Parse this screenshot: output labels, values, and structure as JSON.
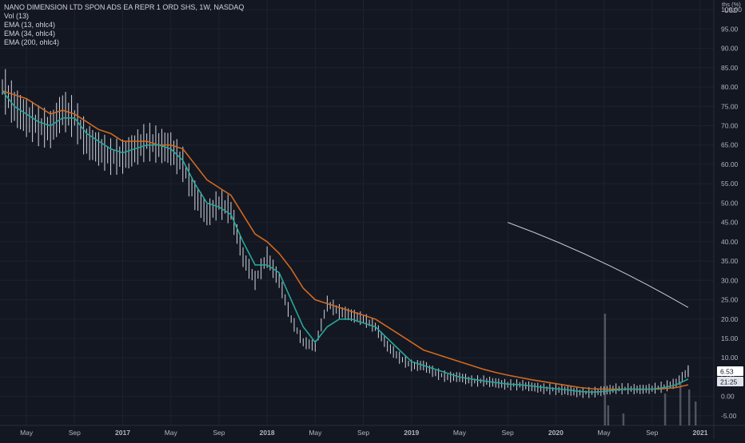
{
  "chart_data": {
    "type": "line",
    "title": "NANO DIMENSION LTD SPON ADS EA REPR 1 ORD SHS, 1W, NASDAQ",
    "indicators": [
      "Vol (13)",
      "EMA (13, ohlc4)",
      "EMA (34, ohlc4)",
      "EMA (200, ohlc4)"
    ],
    "currency": "USD",
    "y_axis_top_label": "ths (%)",
    "ylim": [
      -7.5,
      102.5
    ],
    "y_ticks": [
      "-5.00",
      "0.00",
      "5.00",
      "10.00",
      "15.00",
      "20.00",
      "25.00",
      "30.00",
      "35.00",
      "40.00",
      "45.00",
      "50.00",
      "55.00",
      "60.00",
      "65.00",
      "70.00",
      "75.00",
      "80.00",
      "85.00",
      "90.00",
      "95.00",
      "100.00"
    ],
    "x_ticks": [
      "May",
      "Sep",
      "2017",
      "May",
      "Sep",
      "2018",
      "May",
      "Sep",
      "2019",
      "May",
      "Sep",
      "2020",
      "May",
      "Sep",
      "2021"
    ],
    "last_price": "6.53",
    "countdown": "21:25",
    "colors": {
      "bars": "#d1d4dc",
      "ema13": "#26a69a",
      "ema34": "#d2691e",
      "ema200": "#c9cbd1",
      "volume": "#787b86",
      "price_tag": "#ffffff",
      "grid": "#1e2230"
    },
    "price_series": {
      "x": [
        "2016-03",
        "2016-04",
        "2016-05",
        "2016-06",
        "2016-07",
        "2016-08",
        "2016-09",
        "2016-10",
        "2016-11",
        "2016-12",
        "2017-01",
        "2017-02",
        "2017-03",
        "2017-04",
        "2017-05",
        "2017-06",
        "2017-07",
        "2017-08",
        "2017-09",
        "2017-10",
        "2017-11",
        "2017-12",
        "2018-01",
        "2018-02",
        "2018-03",
        "2018-04",
        "2018-05",
        "2018-06",
        "2018-07",
        "2018-08",
        "2018-09",
        "2018-10",
        "2018-11",
        "2018-12",
        "2019-01",
        "2019-02",
        "2019-03",
        "2019-04",
        "2019-05",
        "2019-06",
        "2019-07",
        "2019-08",
        "2019-09",
        "2019-10",
        "2019-11",
        "2019-12",
        "2020-01",
        "2020-02",
        "2020-03",
        "2020-04",
        "2020-05",
        "2020-06",
        "2020-07",
        "2020-08",
        "2020-09",
        "2020-10",
        "2020-11",
        "2020-12"
      ],
      "close": [
        80,
        75,
        72,
        70,
        69,
        74,
        72,
        66,
        64,
        62,
        62,
        64,
        66,
        65,
        64,
        60,
        52,
        47,
        50,
        48,
        36,
        30,
        36,
        30,
        20,
        14,
        13,
        24,
        22,
        21,
        20,
        18,
        13,
        10,
        8,
        8,
        6,
        5,
        5,
        4,
        4,
        3.5,
        3,
        3,
        2.5,
        2,
        1.8,
        1.5,
        1,
        1,
        1.5,
        2,
        2,
        1.8,
        2,
        2.5,
        3.5,
        6.53
      ]
    },
    "ema13": [
      79,
      75,
      73,
      71,
      70,
      72,
      72,
      68,
      66,
      64,
      63,
      64,
      65,
      65,
      64,
      61,
      55,
      50,
      49,
      47,
      40,
      34,
      34,
      32,
      25,
      18,
      14,
      18,
      20,
      20,
      19,
      18,
      15,
      12,
      9,
      8,
      7,
      6,
      5,
      4.5,
      4,
      3.6,
      3.2,
      3,
      2.7,
      2.3,
      2,
      1.7,
      1.3,
      1.1,
      1.3,
      1.7,
      1.9,
      1.8,
      1.9,
      2.3,
      3,
      4.5
    ],
    "ema34": [
      79,
      78,
      77,
      75,
      73,
      74,
      73,
      71,
      69,
      68,
      66,
      66,
      66,
      65,
      65,
      64,
      60,
      56,
      54,
      52,
      47,
      42,
      40,
      37,
      33,
      28,
      25,
      24,
      23,
      22,
      21,
      20,
      18,
      16,
      14,
      12,
      11,
      10,
      9,
      8,
      7,
      6.2,
      5.5,
      4.9,
      4.3,
      3.8,
      3.3,
      2.8,
      2.3,
      2,
      1.9,
      1.9,
      1.9,
      1.9,
      1.9,
      2,
      2.3,
      3
    ],
    "ema200_trend": {
      "x": [
        "2019-09",
        "2020-12"
      ],
      "y": [
        45.0,
        23.0
      ]
    },
    "volume_note": "volume bars shown bottom, spikes around 2020-05 and 2020-11"
  }
}
